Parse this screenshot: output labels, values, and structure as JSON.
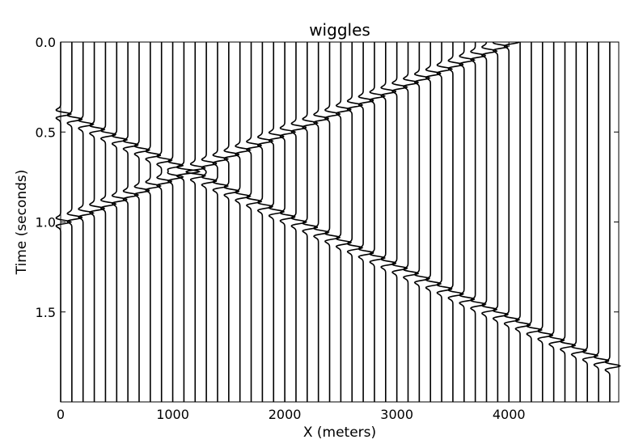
{
  "chart_data": {
    "type": "line",
    "title": "wiggles",
    "xlabel": "X (meters)",
    "ylabel": "Time (seconds)",
    "xlim": [
      0,
      4980
    ],
    "ylim": [
      2.0,
      0.0
    ],
    "y_inverted": true,
    "x_ticks": [
      0,
      1000,
      2000,
      3000,
      4000
    ],
    "x_tick_labels": [
      "0",
      "1000",
      "2000",
      "3000",
      "4000"
    ],
    "y_ticks": [
      0.0,
      0.5,
      1.0,
      1.5
    ],
    "y_tick_labels": [
      "0.0",
      "0.5",
      "1.0",
      "1.5"
    ],
    "grid": false,
    "trace_spacing_m": 100,
    "trace_positions": [
      0,
      100,
      200,
      300,
      400,
      500,
      600,
      700,
      800,
      900,
      1000,
      1100,
      1200,
      1300,
      1400,
      1500,
      1600,
      1700,
      1800,
      1900,
      2000,
      2100,
      2200,
      2300,
      2400,
      2500,
      2600,
      2700,
      2800,
      2900,
      3000,
      3100,
      3200,
      3300,
      3400,
      3500,
      3600,
      3700,
      3800,
      3900,
      4000,
      4100,
      4200,
      4300,
      4400,
      4500,
      4600,
      4700,
      4800,
      4900
    ],
    "events": [
      {
        "x": [
          0,
          4900
        ],
        "t": [
          0.4,
          1.8
        ]
      },
      {
        "x": [
          0,
          4000
        ],
        "t": [
          1.0,
          0.0
        ]
      }
    ],
    "line_color": "#000000"
  }
}
